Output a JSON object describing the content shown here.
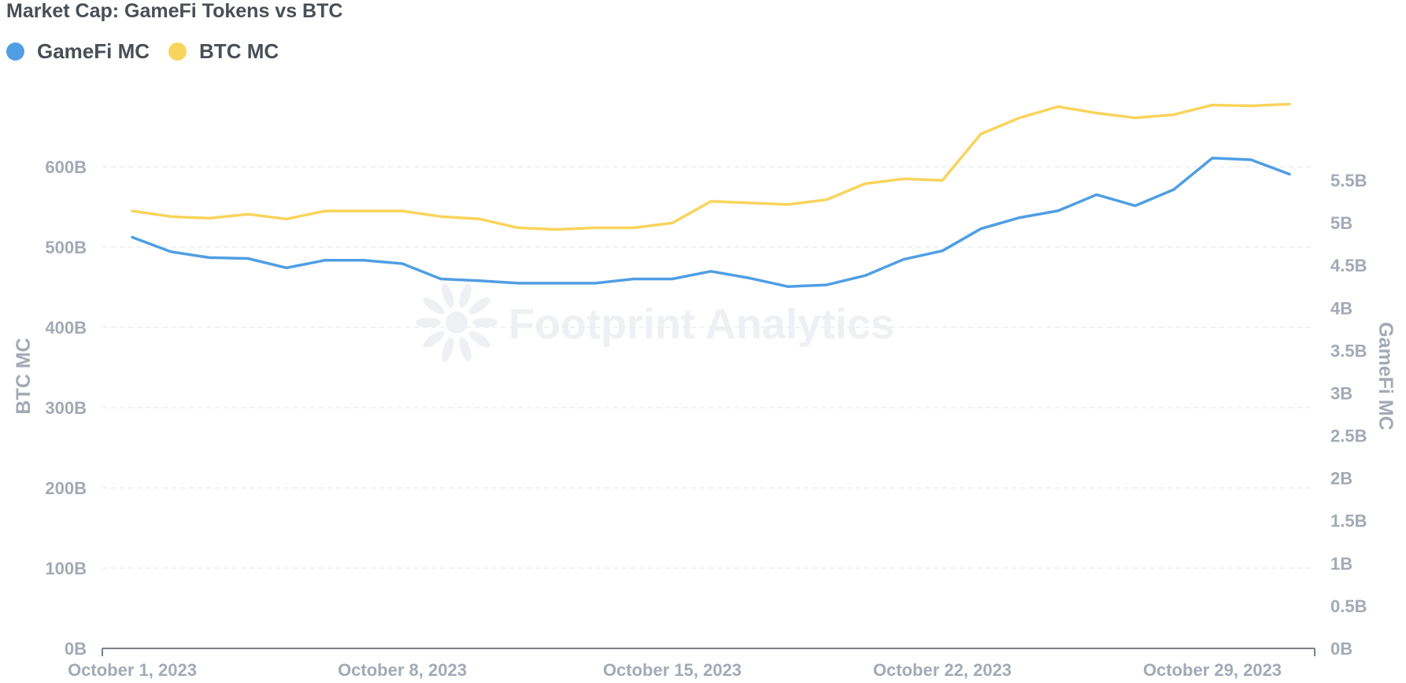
{
  "chart_data": {
    "type": "line",
    "title": "Market Cap: GameFi Tokens vs BTC",
    "watermark": "Footprint Analytics",
    "x": [
      "2023-10-01",
      "2023-10-02",
      "2023-10-03",
      "2023-10-04",
      "2023-10-05",
      "2023-10-06",
      "2023-10-07",
      "2023-10-08",
      "2023-10-09",
      "2023-10-10",
      "2023-10-11",
      "2023-10-12",
      "2023-10-13",
      "2023-10-14",
      "2023-10-15",
      "2023-10-16",
      "2023-10-17",
      "2023-10-18",
      "2023-10-19",
      "2023-10-20",
      "2023-10-21",
      "2023-10-22",
      "2023-10-23",
      "2023-10-24",
      "2023-10-25",
      "2023-10-26",
      "2023-10-27",
      "2023-10-28",
      "2023-10-29",
      "2023-10-30",
      "2023-10-31"
    ],
    "x_tick_labels": [
      {
        "date": "2023-10-01",
        "label": "October 1, 2023"
      },
      {
        "date": "2023-10-08",
        "label": "October 8, 2023"
      },
      {
        "date": "2023-10-15",
        "label": "October 15, 2023"
      },
      {
        "date": "2023-10-22",
        "label": "October 22, 2023"
      },
      {
        "date": "2023-10-29",
        "label": "October 29, 2023"
      }
    ],
    "left_axis": {
      "label": "BTC MC",
      "ylim": [
        0,
        700
      ],
      "ticks": [
        0,
        100,
        200,
        300,
        400,
        500,
        600
      ],
      "tick_labels": [
        "0B",
        "100B",
        "200B",
        "300B",
        "400B",
        "500B",
        "600B"
      ]
    },
    "right_axis": {
      "label": "GameFi MC",
      "ylim": [
        0,
        6.6
      ],
      "ticks": [
        0,
        0.5,
        1,
        1.5,
        2,
        2.5,
        3,
        3.5,
        4,
        4.5,
        5,
        5.5
      ],
      "tick_labels": [
        "0B",
        "0.5B",
        "1B",
        "1.5B",
        "2B",
        "2.5B",
        "3B",
        "3.5B",
        "4B",
        "4.5B",
        "5B",
        "5.5B"
      ]
    },
    "grid": true,
    "legend_position": "top-left",
    "series": [
      {
        "name": "GameFi MC",
        "axis": "right",
        "color": "#509ee3",
        "values": [
          4.83,
          4.66,
          4.59,
          4.58,
          4.47,
          4.56,
          4.56,
          4.52,
          4.34,
          4.32,
          4.29,
          4.29,
          4.29,
          4.34,
          4.34,
          4.43,
          4.35,
          4.25,
          4.27,
          4.38,
          4.57,
          4.67,
          4.93,
          5.06,
          5.14,
          5.33,
          5.2,
          5.39,
          5.76,
          5.74,
          5.57
        ]
      },
      {
        "name": "BTC MC",
        "axis": "left",
        "color": "#f9d45c",
        "values": [
          545,
          538,
          536,
          541,
          535,
          545,
          545,
          545,
          538,
          535,
          524,
          522,
          524,
          524,
          530,
          557,
          555,
          553,
          559,
          579,
          585,
          583,
          641,
          661,
          675,
          667,
          661,
          665,
          677,
          676,
          678
        ]
      }
    ]
  }
}
